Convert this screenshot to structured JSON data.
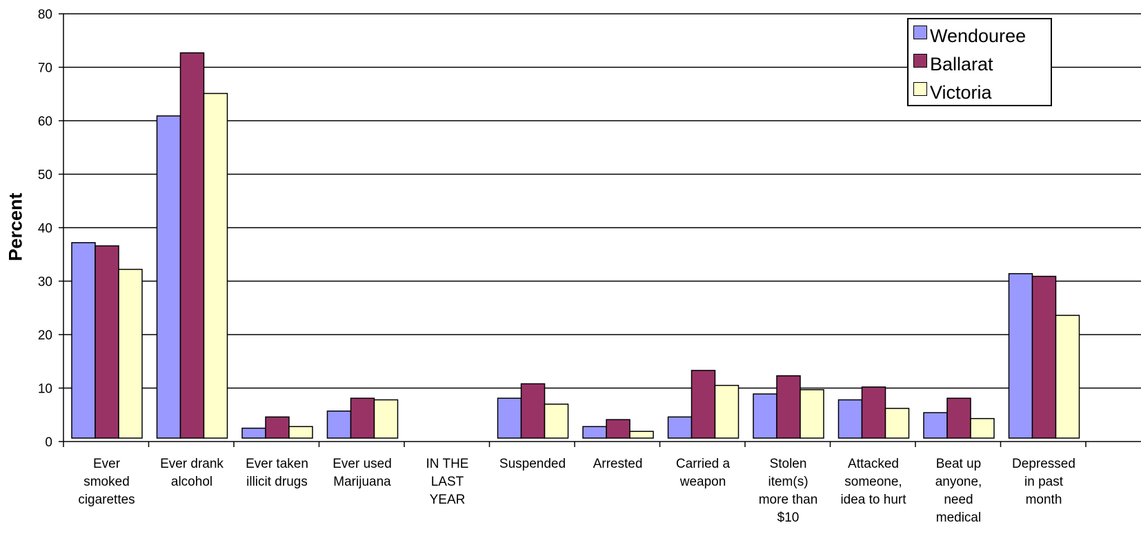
{
  "chart_data": {
    "type": "bar",
    "title": "",
    "xlabel": "",
    "ylabel": "Percent",
    "ylim": [
      0,
      80
    ],
    "yticks": [
      0,
      10,
      20,
      30,
      40,
      50,
      60,
      70,
      80
    ],
    "grid": true,
    "legend_position": "top-right",
    "categories": [
      [
        "Ever",
        "smoked",
        "cigarettes"
      ],
      [
        "Ever drank",
        "alcohol"
      ],
      [
        "Ever taken",
        "illicit drugs"
      ],
      [
        "Ever used",
        "Marijuana"
      ],
      [
        "IN THE",
        "LAST",
        "YEAR"
      ],
      [
        "Suspended"
      ],
      [
        "Arrested"
      ],
      [
        "Carried a",
        "weapon"
      ],
      [
        "Stolen",
        "item(s)",
        "more than",
        "$10"
      ],
      [
        "Attacked",
        "someone,",
        "idea to hurt"
      ],
      [
        "Beat up",
        "anyone,",
        "need",
        "medical"
      ],
      [
        "Depressed",
        "in past",
        "month"
      ]
    ],
    "series": [
      {
        "name": "Wendouree",
        "color": "#9999ff",
        "values": [
          37.2,
          60.9,
          2.5,
          5.7,
          null,
          8.1,
          2.8,
          4.6,
          8.9,
          7.8,
          5.4,
          31.4
        ]
      },
      {
        "name": "Ballarat",
        "color": "#993366",
        "values": [
          36.6,
          72.7,
          4.6,
          8.1,
          null,
          10.8,
          4.1,
          13.3,
          12.3,
          10.2,
          8.1,
          30.9
        ]
      },
      {
        "name": "Victoria",
        "color": "#ffffcc",
        "values": [
          32.2,
          65.1,
          2.8,
          7.8,
          null,
          7.0,
          1.9,
          10.5,
          9.7,
          6.2,
          4.3,
          23.6
        ]
      }
    ]
  }
}
